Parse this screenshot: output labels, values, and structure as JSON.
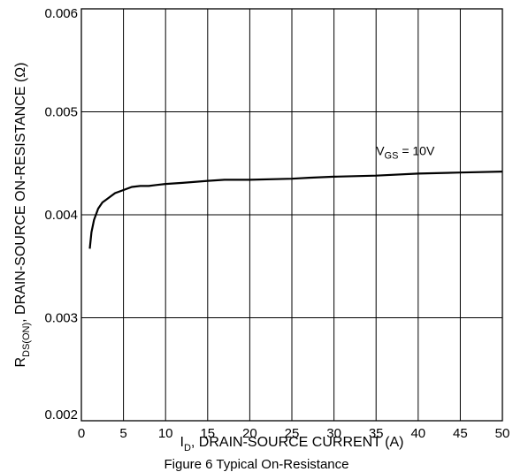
{
  "chart_data": {
    "type": "line",
    "xlim": [
      0,
      50
    ],
    "ylim": [
      0.002,
      0.006
    ],
    "grid": true,
    "x_ticks": [
      "0",
      "5",
      "10",
      "15",
      "20",
      "25",
      "30",
      "35",
      "40",
      "45",
      "50"
    ],
    "y_ticks": [
      "0.002",
      "0.003",
      "0.004",
      "0.005",
      "0.006"
    ],
    "xlabel": {
      "main": "I",
      "sub": "D",
      "rest": ", DRAIN-SOURCE CURRENT (A)"
    },
    "ylabel": {
      "main": "R",
      "sub": "DS(ON)",
      "rest": ", DRAIN-SOURCE ON-RESISTANCE (Ω)"
    },
    "annotation": {
      "main": "V",
      "sub": "GS",
      "rest": " = 10V",
      "x": 35,
      "y": 0.00458
    },
    "series": [
      {
        "x": [
          1,
          1.2,
          1.5,
          2,
          2.5,
          3,
          4,
          5,
          6,
          7,
          8,
          9,
          10,
          12,
          15,
          17,
          20,
          25,
          27,
          30,
          35,
          40,
          45,
          50
        ],
        "y": [
          0.00367,
          0.00383,
          0.00395,
          0.00406,
          0.00412,
          0.00415,
          0.00421,
          0.00424,
          0.00427,
          0.00428,
          0.00428,
          0.00429,
          0.0043,
          0.00431,
          0.00433,
          0.00434,
          0.00434,
          0.00435,
          0.00436,
          0.00437,
          0.00438,
          0.0044,
          0.00441,
          0.00442
        ]
      }
    ],
    "caption": "Figure 6 Typical On-Resistance"
  }
}
